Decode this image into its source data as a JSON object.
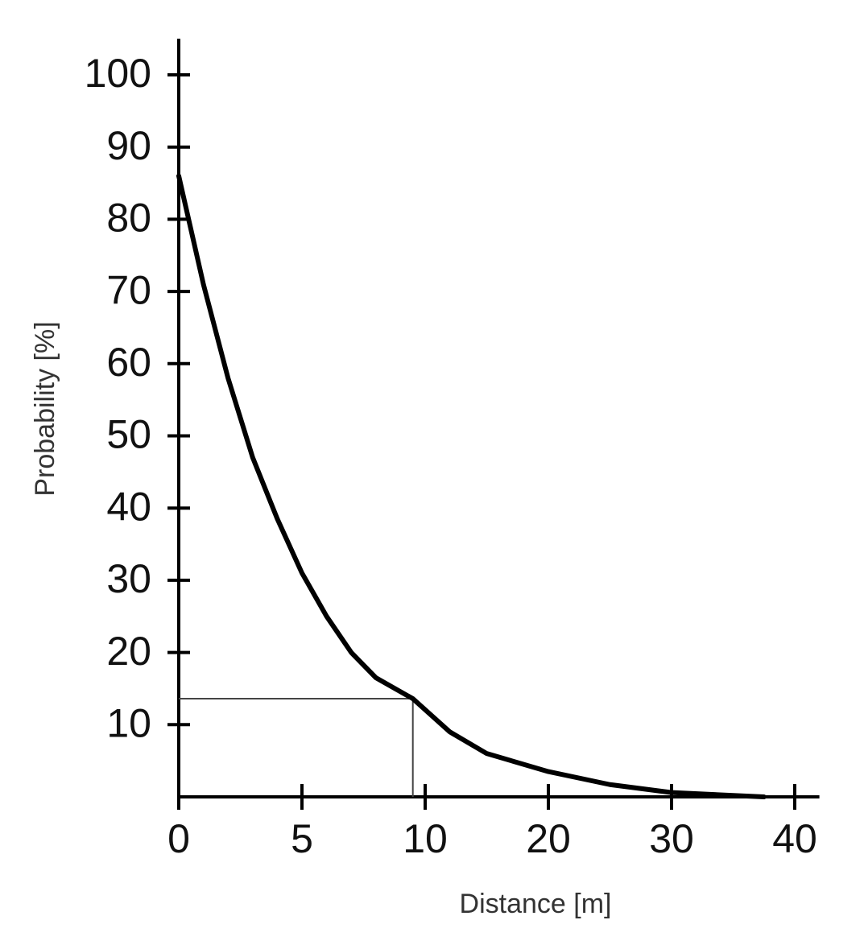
{
  "chart_data": {
    "type": "line",
    "x_label": "Distance [m]",
    "y_label": "Probability [%]",
    "x": [
      0,
      1,
      2,
      3,
      4,
      5,
      6,
      7,
      8,
      9.5,
      12,
      15,
      20,
      25,
      30,
      37.5
    ],
    "series": [
      {
        "color": "#000000",
        "values": [
          86,
          71,
          58,
          47,
          38.5,
          31,
          25,
          20,
          16.5,
          13.6,
          9,
          6,
          3.5,
          1.7,
          0.6,
          0
        ]
      }
    ],
    "xlim": [
      0,
      42
    ],
    "xticks": [
      0,
      5,
      10,
      20,
      30,
      40
    ],
    "ylim": [
      0,
      105
    ],
    "yticks": [
      10,
      20,
      30,
      40,
      50,
      60,
      70,
      80,
      90,
      100
    ],
    "marker": {
      "x": 9.5,
      "y": 13.6
    }
  }
}
